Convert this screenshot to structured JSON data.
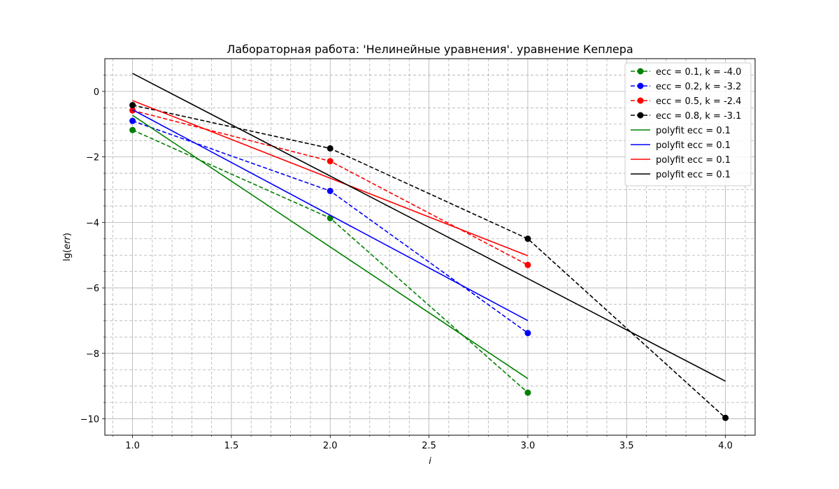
{
  "chart_data": {
    "type": "line",
    "title": "Лабораторная работа: 'Нелинейные уравнения'. уравнение Кеплера",
    "xlabel": "i",
    "ylabel_prefix": "lg(",
    "ylabel_var": "err",
    "ylabel_suffix": ")",
    "xlim": [
      0.86,
      4.15
    ],
    "ylim": [
      -10.5,
      1.0
    ],
    "x_ticks": [
      1.0,
      1.5,
      2.0,
      2.5,
      3.0,
      3.5,
      4.0
    ],
    "x_tick_labels": [
      "1.0",
      "1.5",
      "2.0",
      "2.5",
      "3.0",
      "3.5",
      "4.0"
    ],
    "x_minor_ticks": [
      0.9,
      1.1,
      1.2,
      1.3,
      1.4,
      1.6,
      1.7,
      1.8,
      1.9,
      2.1,
      2.2,
      2.3,
      2.4,
      2.6,
      2.7,
      2.8,
      2.9,
      3.1,
      3.2,
      3.3,
      3.4,
      3.6,
      3.7,
      3.8,
      3.9,
      4.1
    ],
    "y_ticks": [
      0,
      -2,
      -4,
      -6,
      -8,
      -10
    ],
    "y_tick_labels": [
      "0",
      "−2",
      "−4",
      "−6",
      "−8",
      "−10"
    ],
    "y_minor_ticks": [
      0.5,
      -0.5,
      -1,
      -1.5,
      -2.5,
      -3,
      -3.5,
      -4.5,
      -5,
      -5.5,
      -6.5,
      -7,
      -7.5,
      -8.5,
      -9,
      -9.5
    ],
    "grid": true,
    "legend_position": "top-right",
    "series": [
      {
        "name": "ecc = 0.1, k = -4.0",
        "style": "dashed-marker",
        "color": "#008000",
        "x": [
          1,
          2,
          3
        ],
        "y": [
          -1.18,
          -3.87,
          -9.2
        ]
      },
      {
        "name": "ecc = 0.2, k = -3.2",
        "style": "dashed-marker",
        "color": "#0000ff",
        "x": [
          1,
          2,
          3
        ],
        "y": [
          -0.9,
          -3.04,
          -7.38
        ]
      },
      {
        "name": "ecc = 0.5, k = -2.4",
        "style": "dashed-marker",
        "color": "#ff0000",
        "x": [
          1,
          2,
          3
        ],
        "y": [
          -0.58,
          -2.13,
          -5.3
        ]
      },
      {
        "name": "ecc = 0.8, k = -3.1",
        "style": "dashed-marker",
        "color": "#000000",
        "x": [
          1,
          2,
          3,
          4
        ],
        "y": [
          -0.42,
          -1.74,
          -4.5,
          -9.97
        ]
      },
      {
        "name": "polyfit ecc = 0.1",
        "style": "solid",
        "color": "#008000",
        "x": [
          1,
          3
        ],
        "y": [
          -0.73,
          -8.77
        ]
      },
      {
        "name": "polyfit ecc = 0.1",
        "style": "solid",
        "color": "#0000ff",
        "x": [
          1,
          3
        ],
        "y": [
          -0.56,
          -7.0
        ]
      },
      {
        "name": "polyfit ecc = 0.1",
        "style": "solid",
        "color": "#ff0000",
        "x": [
          1,
          3
        ],
        "y": [
          -0.28,
          -5.02
        ]
      },
      {
        "name": "polyfit ecc = 0.1",
        "style": "solid",
        "color": "#000000",
        "x": [
          1,
          4
        ],
        "y": [
          0.55,
          -8.85
        ]
      }
    ]
  }
}
